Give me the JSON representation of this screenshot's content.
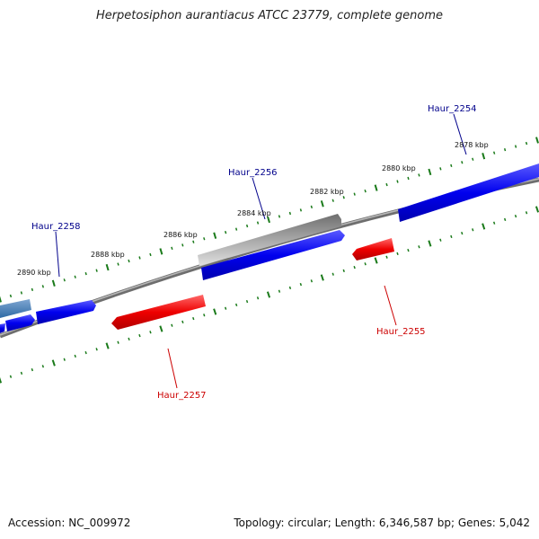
{
  "title": "Herpetosiphon aurantiacus ATCC 23779, complete genome",
  "footer": {
    "accession": "Accession: NC_009972",
    "summary": "Topology: circular; Length: 6,346,587 bp; Genes: 5,042"
  },
  "scale_labels": [
    "2878 kbp",
    "2880 kbp",
    "2882 kbp",
    "2884 kbp",
    "2886 kbp",
    "2888 kbp",
    "2890 kbp"
  ],
  "gene_labels": [
    {
      "text": "Haur_2254",
      "strand": "forward"
    },
    {
      "text": "Haur_2255",
      "strand": "reverse"
    },
    {
      "text": "Haur_2256",
      "strand": "forward"
    },
    {
      "text": "Haur_2257",
      "strand": "reverse"
    },
    {
      "text": "Haur_2258",
      "strand": "forward"
    }
  ],
  "colors": {
    "forward_label": "#00008b",
    "reverse_label": "#cc0000",
    "forward_gene": "#0000ee",
    "reverse_gene": "#ee0000",
    "backbone": "#808080",
    "highlight_gene": "#a8a8a8",
    "tick": "#1a7a1a"
  }
}
